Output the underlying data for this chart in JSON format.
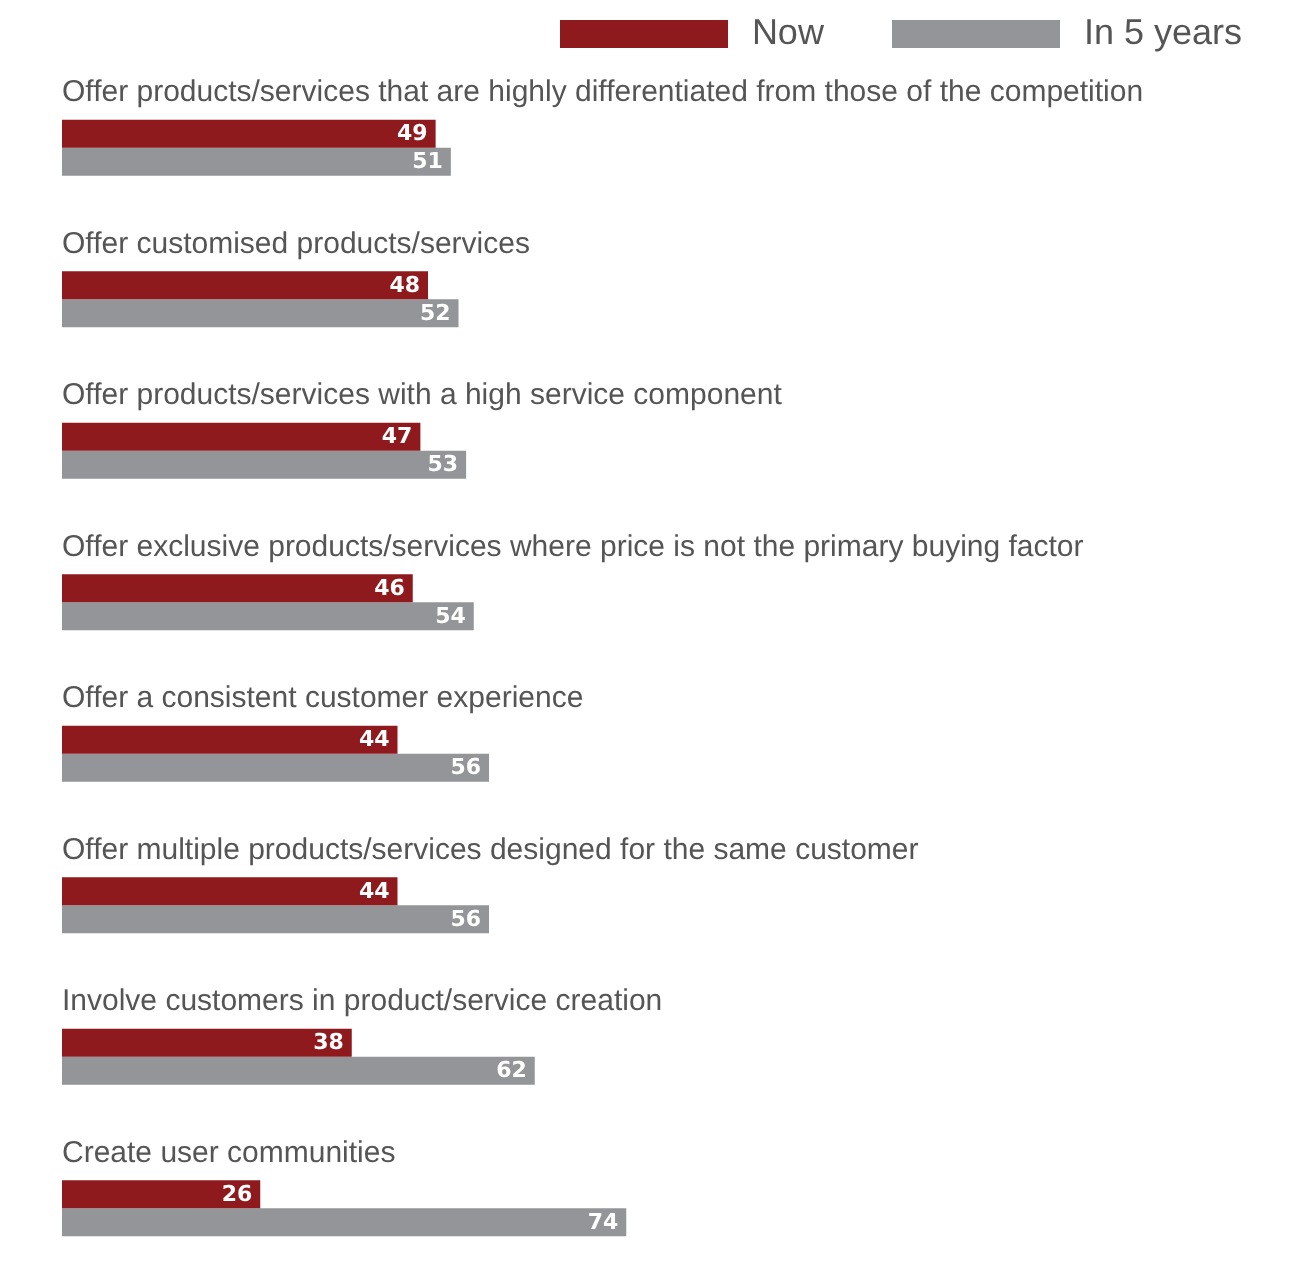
{
  "chart_data": {
    "type": "bar",
    "orientation": "horizontal",
    "legend": "top right",
    "data_labels": true,
    "tick_labels": false,
    "categories": [
      "Offer products/services that are highly differentiated from those of the competition",
      "Offer customised products/services",
      "Offer products/services with a high service component",
      "Offer exclusive products/services where price is not the primary buying factor",
      "Offer a consistent customer experience",
      "Offer multiple products/services designed for the same customer",
      "Involve customers in product/service creation",
      "Create user communities"
    ],
    "series": [
      {
        "name": "Now",
        "color": "#8e1a1e",
        "values": [
          49,
          48,
          47,
          46,
          44,
          44,
          38,
          26
        ]
      },
      {
        "name": "In 5 years",
        "color": "#939598",
        "values": [
          51,
          52,
          53,
          54,
          56,
          56,
          62,
          74
        ]
      }
    ]
  }
}
